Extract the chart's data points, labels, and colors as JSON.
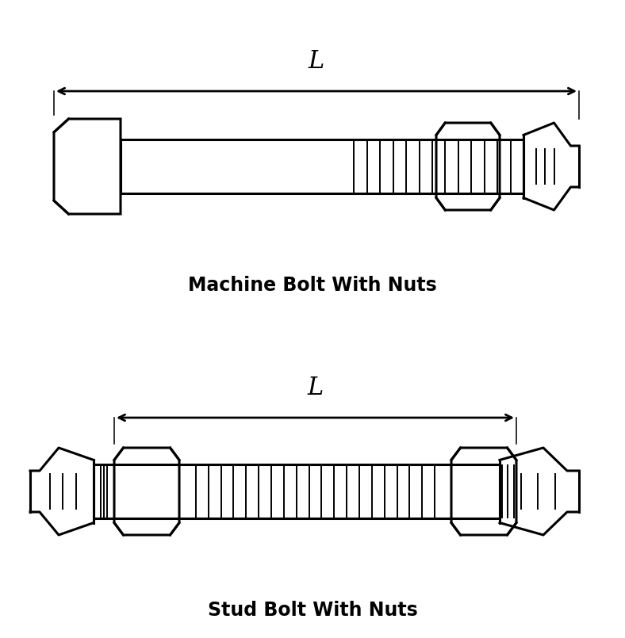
{
  "bg_color": "#ffffff",
  "line_color": "#000000",
  "lw": 2.2,
  "lw_thin": 1.4,
  "title1": "Machine Bolt With Nuts",
  "title2": "Stud Bolt With Nuts",
  "title_fontsize": 17,
  "dim_label": "L",
  "dim_fontsize": 22,
  "fig_width": 7.88,
  "fig_height": 8.05
}
